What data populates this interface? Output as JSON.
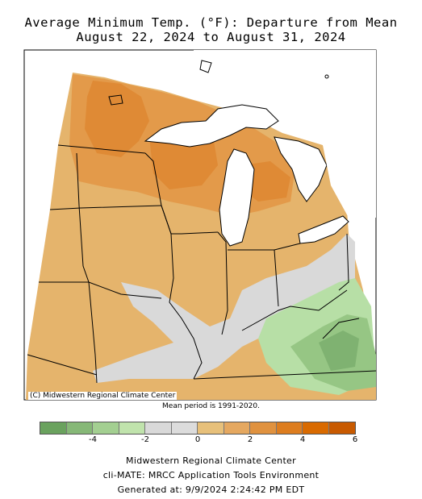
{
  "title_line1": "Average Minimum Temp. (°F): Departure from Mean",
  "title_line2": "August 22, 2024 to August 31, 2024",
  "credit": "(C) Midwestern Regional Climate Center",
  "period_note": "Mean period is 1991-2020.",
  "legend": {
    "colors": [
      "#6aa25e",
      "#86b877",
      "#a3cf91",
      "#c0e3ac",
      "#d9d9d9",
      "#dcdcdc",
      "#e7c07a",
      "#e5a860",
      "#e0923f",
      "#dd7d1f",
      "#d96a00",
      "#c85a00"
    ],
    "ticks": [
      "-4",
      "-2",
      "0",
      "2",
      "4",
      "6"
    ],
    "tick_values": [
      -4,
      -2,
      0,
      2,
      4,
      6
    ]
  },
  "footer": {
    "line1": "Midwestern Regional Climate Center",
    "line2": "cli-MATE: MRCC Application Tools Environment",
    "line3": "Generated at: 9/9/2024 2:24:42 PM EDT"
  },
  "map_colors": {
    "base": "#e5b46c",
    "warm": "#e39a4a",
    "hot": "#df8a35",
    "neutral": "#d9d9d9",
    "cool_light": "#b7dfa6",
    "cool_mid": "#96c684",
    "cool_dark": "#7fb271",
    "water": "#ffffff",
    "border": "#000000"
  }
}
